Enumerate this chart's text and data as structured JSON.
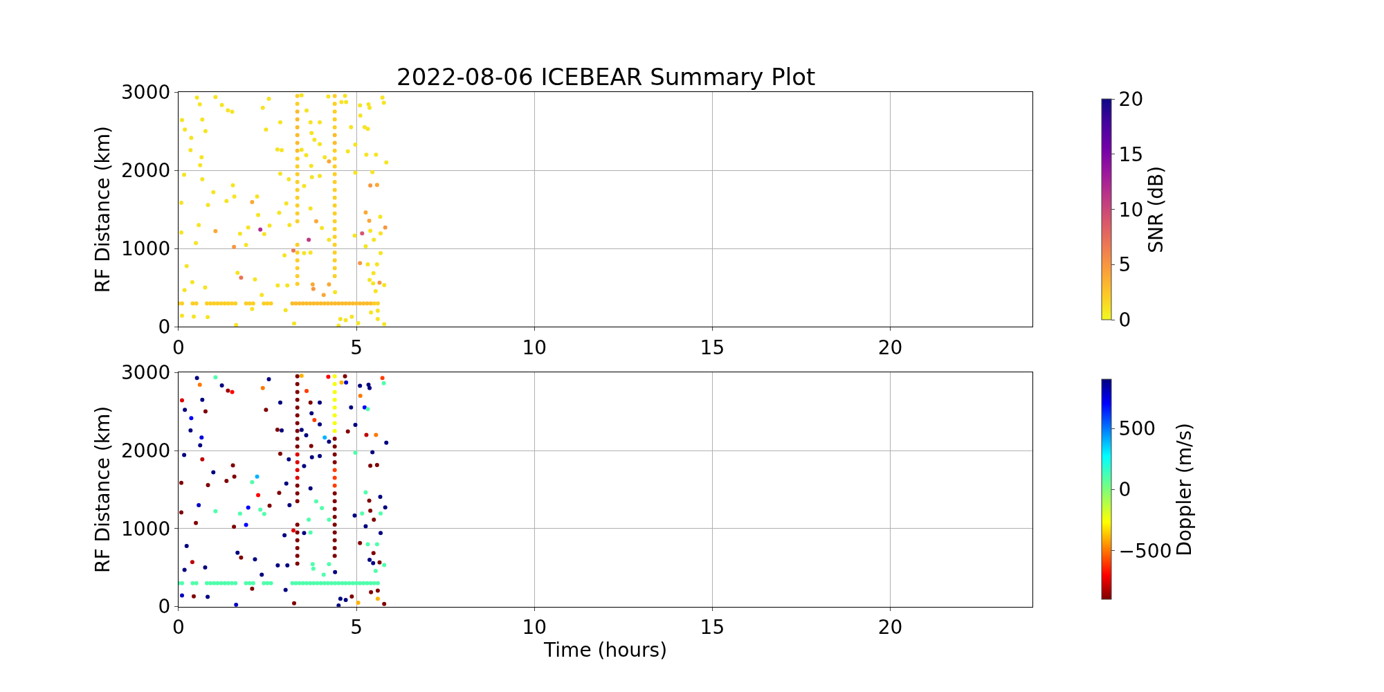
{
  "chart_data": [
    {
      "type": "scatter",
      "title": "2022-08-06 ICEBEAR Summary Plot",
      "ylabel": "RF Distance (km)",
      "clabel": "SNR (dB)",
      "xlim": [
        0,
        24
      ],
      "xticks": [
        0,
        5,
        10,
        15,
        20
      ],
      "ylim": [
        0,
        3000
      ],
      "yticks": [
        0,
        1000,
        2000,
        3000
      ],
      "clim": [
        0,
        20
      ],
      "cticks": [
        0,
        5,
        10,
        15,
        20
      ],
      "grid": true,
      "marker": "circle",
      "x": [
        0.52,
        1.04,
        1.22,
        1.39,
        1.51,
        0.6,
        0.1,
        0.67,
        0.18,
        0.36,
        0.76,
        0.34,
        0.65,
        0.61,
        0.16,
        0.67,
        0.98,
        0.08,
        0.83,
        1.35,
        1.57,
        1.53,
        2.07,
        2.21,
        2.24,
        0.57,
        1.04,
        1.73,
        1.96,
        2.41,
        2.56,
        0.08,
        0.49,
        1.56,
        1.9,
        0.23,
        0.39,
        0.75,
        0.17,
        1.66,
        1.76,
        2.15,
        2.34,
        0.1,
        0.43,
        0.82,
        1.62,
        2.07,
        2.79,
        2.86,
        2.78,
        2.9,
        2.54,
        2.37,
        2.46,
        2.86,
        3.1,
        3.03,
        2.83,
        3.12,
        2.98,
        3.06,
        3.01,
        3.25,
        3.6,
        3.71,
        3.82,
        3.74,
        3.46,
        3.59,
        3.73,
        3.97,
        3.97,
        4.11,
        4.23,
        4.21,
        3.46,
        3.75,
        3.97,
        3.53,
        3.71,
        3.87,
        4.03,
        4.23,
        3.71,
        3.53,
        3.77,
        3.79,
        4.23,
        4.4,
        4.08,
        4.5,
        4.55,
        4.7,
        4.87,
        4.58,
        4.68,
        4.71,
        4.85,
        4.76,
        4.97,
        5.1,
        5.34,
        5.37,
        5.11,
        5.23,
        5.32,
        5.28,
        5.55,
        5.84,
        5.73,
        5.77,
        4.97,
        5.45,
        5.39,
        5.58,
        5.26,
        5.36,
        5.67,
        5.81,
        5.39,
        5.68,
        5.16,
        4.95,
        5.49,
        5.26,
        5.68,
        5.1,
        5.32,
        5.58,
        5.48,
        5.37,
        5.47,
        5.65,
        5.78,
        5.54,
        5.41,
        5.6,
        5.78,
        5.6,
        5.05,
        2.3,
        3.66,
        3.23,
        3.34,
        3.34,
        3.34,
        3.34,
        3.34,
        3.34,
        3.34,
        3.34,
        3.34,
        3.34,
        3.34,
        3.34,
        3.34,
        3.34,
        3.34,
        3.34,
        3.34,
        3.34,
        3.34,
        3.34,
        3.34,
        3.34,
        3.34,
        4.39,
        4.39,
        4.39,
        4.39,
        4.39,
        4.39,
        4.39,
        4.39,
        4.39,
        4.39,
        4.39,
        4.39,
        4.39,
        4.39,
        4.39,
        4.39,
        4.39,
        4.39,
        4.39,
        4.39,
        4.39,
        4.39,
        4.39,
        4.39,
        0.0,
        0.1,
        0.4,
        0.5,
        0.8,
        0.9,
        1.0,
        1.1,
        1.2,
        1.3,
        1.4,
        1.5,
        1.6,
        1.9,
        2.0,
        2.1,
        2.4,
        2.5,
        2.6,
        3.2,
        3.3,
        3.4,
        3.5,
        3.6,
        3.7,
        3.8,
        3.9,
        4.0,
        4.1,
        4.2,
        4.3,
        4.4,
        4.5,
        4.6,
        4.7,
        4.8,
        4.9,
        5.0,
        5.1,
        5.2,
        5.3,
        5.4,
        5.5,
        5.6
      ],
      "values": [
        2929,
        2937,
        2834,
        2766,
        2749,
        2843,
        2643,
        2649,
        2520,
        2414,
        2500,
        2257,
        2166,
        2066,
        1943,
        1886,
        1720,
        1586,
        1557,
        1609,
        1666,
        1809,
        1594,
        1666,
        1429,
        1300,
        1223,
        1191,
        1269,
        1186,
        1294,
        1206,
        1071,
        1023,
        1046,
        777,
        571,
        503,
        471,
        691,
        629,
        606,
        409,
        143,
        131,
        126,
        23,
        229,
        529,
        2614,
        2266,
        2257,
        2914,
        2800,
        2520,
        1957,
        1886,
        1577,
        1457,
        1300,
        914,
        529,
        214,
        43,
        2763,
        2614,
        2391,
        2477,
        2263,
        2194,
        2057,
        2614,
        2334,
        2166,
        2114,
        2943,
        2957,
        1914,
        1929,
        1800,
        1514,
        1349,
        1263,
        1114,
        949,
        943,
        543,
        486,
        543,
        443,
        409,
        14,
        100,
        86,
        129,
        2871,
        2951,
        2871,
        2551,
        2243,
        2329,
        2829,
        2843,
        2800,
        2700,
        2551,
        2529,
        2200,
        2200,
        2100,
        2929,
        2863,
        1971,
        1977,
        1806,
        1814,
        1463,
        1357,
        1406,
        1271,
        1229,
        1194,
        1194,
        1166,
        1114,
        1029,
        943,
        814,
        800,
        800,
        686,
        600,
        557,
        566,
        534,
        457,
        186,
        206,
        34,
        100,
        49,
        1243,
        1114,
        977,
        2950,
        2850,
        2750,
        2650,
        2550,
        2450,
        2350,
        2250,
        2150,
        2050,
        1950,
        1850,
        1750,
        1650,
        1550,
        1450,
        1350,
        1050,
        950,
        850,
        750,
        650,
        550,
        2950,
        2850,
        2750,
        2650,
        2550,
        2450,
        2350,
        2250,
        2150,
        2050,
        1950,
        1850,
        1750,
        1650,
        1550,
        1450,
        1350,
        1250,
        1150,
        1050,
        950,
        850,
        750,
        650,
        300,
        300,
        300,
        300,
        300,
        300,
        300,
        300,
        300,
        300,
        300,
        300,
        300,
        300,
        300,
        300,
        300,
        300,
        300,
        300,
        300,
        300,
        300,
        300,
        300,
        300,
        300,
        300,
        300,
        300,
        300,
        300,
        300,
        300,
        300,
        300,
        300,
        300,
        300,
        300,
        300,
        300,
        300,
        300
      ],
      "cvalues": [
        1,
        1,
        1,
        1,
        1,
        1,
        1,
        1,
        1,
        1,
        1,
        1,
        1,
        1,
        1,
        1,
        1,
        1,
        1,
        1,
        1,
        1,
        4,
        1,
        1,
        1,
        4,
        1,
        1,
        1,
        1,
        1,
        1,
        5,
        1,
        1,
        1,
        1,
        1,
        1,
        7,
        1,
        1,
        1,
        1,
        1,
        1,
        1,
        1,
        1,
        1,
        1,
        1,
        1,
        1,
        1,
        1,
        1,
        1,
        1,
        1,
        1,
        1,
        1,
        1,
        1,
        1,
        1,
        1,
        1,
        1,
        1,
        1,
        1,
        4,
        1,
        1,
        1,
        1,
        1,
        1,
        4,
        1,
        1,
        1,
        1,
        4,
        5,
        4,
        1,
        4,
        1,
        1,
        1,
        1,
        1,
        1,
        1,
        1,
        1,
        1,
        1,
        1,
        1,
        1,
        1,
        1,
        1,
        1,
        1,
        1,
        1,
        1,
        1,
        5,
        4,
        4,
        4,
        1,
        5,
        1,
        1,
        9,
        1,
        1,
        1,
        1,
        5,
        1,
        1,
        1,
        1,
        1,
        5,
        1,
        1,
        1,
        1,
        1,
        1,
        1,
        12,
        11,
        7,
        2,
        2,
        3,
        3,
        3,
        3,
        3,
        3,
        2,
        2,
        2,
        2,
        2,
        2,
        2,
        2,
        2,
        2,
        2,
        2,
        2,
        2,
        2,
        2,
        2,
        2,
        2,
        2,
        3,
        3,
        2,
        2,
        2,
        2,
        2,
        2,
        2,
        2,
        2,
        2,
        2,
        2,
        2,
        2,
        2,
        2,
        2,
        2,
        2,
        2,
        2,
        2,
        2,
        2,
        2,
        2,
        2,
        2,
        2,
        2,
        2,
        2,
        2,
        2,
        2,
        2,
        3,
        3,
        3,
        3,
        3,
        3,
        3,
        3,
        3,
        3,
        3,
        3,
        3,
        3,
        3,
        3,
        3,
        3,
        3,
        3,
        3,
        3,
        3,
        2,
        2
      ]
    },
    {
      "type": "scatter",
      "xlabel": "Time (hours)",
      "ylabel": "RF Distance (km)",
      "clabel": "Doppler (m/s)",
      "xlim": [
        0,
        24
      ],
      "xticks": [
        0,
        5,
        10,
        15,
        20
      ],
      "ylim": [
        0,
        3000
      ],
      "yticks": [
        0,
        1000,
        2000,
        3000
      ],
      "clim": [
        -900,
        900
      ],
      "cticks": [
        {
          "value": -500,
          "label": "−500"
        },
        0,
        500
      ],
      "grid": true,
      "marker": "circle",
      "x": [
        0.52,
        1.04,
        1.22,
        1.39,
        1.51,
        0.6,
        0.1,
        0.67,
        0.18,
        0.36,
        0.76,
        0.34,
        0.65,
        0.61,
        0.16,
        0.67,
        0.98,
        0.08,
        0.83,
        1.35,
        1.57,
        1.53,
        2.07,
        2.21,
        2.24,
        0.57,
        1.04,
        1.73,
        1.96,
        2.41,
        2.56,
        0.08,
        0.49,
        1.56,
        1.9,
        0.23,
        0.39,
        0.75,
        0.17,
        1.66,
        1.76,
        2.15,
        2.34,
        0.1,
        0.43,
        0.82,
        1.62,
        2.07,
        2.79,
        2.86,
        2.78,
        2.9,
        2.54,
        2.37,
        2.46,
        2.86,
        3.1,
        3.03,
        2.83,
        3.12,
        2.98,
        3.06,
        3.01,
        3.25,
        3.6,
        3.71,
        3.82,
        3.74,
        3.46,
        3.59,
        3.73,
        3.97,
        3.97,
        4.11,
        4.23,
        4.21,
        3.46,
        3.75,
        3.97,
        3.53,
        3.71,
        3.87,
        4.03,
        4.23,
        3.71,
        3.53,
        3.77,
        3.79,
        4.23,
        4.4,
        4.08,
        4.5,
        4.55,
        4.7,
        4.87,
        4.58,
        4.68,
        4.71,
        4.85,
        4.76,
        4.97,
        5.1,
        5.34,
        5.37,
        5.11,
        5.23,
        5.32,
        5.28,
        5.55,
        5.84,
        5.73,
        5.77,
        4.97,
        5.45,
        5.39,
        5.58,
        5.26,
        5.36,
        5.67,
        5.81,
        5.39,
        5.68,
        5.16,
        4.95,
        5.49,
        5.26,
        5.68,
        5.1,
        5.32,
        5.58,
        5.48,
        5.37,
        5.47,
        5.65,
        5.78,
        5.54,
        5.41,
        5.6,
        5.78,
        5.6,
        5.05,
        2.3,
        3.66,
        3.23,
        3.34,
        3.34,
        3.34,
        3.34,
        3.34,
        3.34,
        3.34,
        3.34,
        3.34,
        3.34,
        3.34,
        3.34,
        3.34,
        3.34,
        3.34,
        3.34,
        3.34,
        3.34,
        3.34,
        3.34,
        3.34,
        3.34,
        3.34,
        4.39,
        4.39,
        4.39,
        4.39,
        4.39,
        4.39,
        4.39,
        4.39,
        4.39,
        4.39,
        4.39,
        4.39,
        4.39,
        4.39,
        4.39,
        4.39,
        4.39,
        4.39,
        4.39,
        4.39,
        4.39,
        4.39,
        4.39,
        4.39,
        0.0,
        0.1,
        0.4,
        0.5,
        0.8,
        0.9,
        1.0,
        1.1,
        1.2,
        1.3,
        1.4,
        1.5,
        1.6,
        1.9,
        2.0,
        2.1,
        2.4,
        2.5,
        2.6,
        3.2,
        3.3,
        3.4,
        3.5,
        3.6,
        3.7,
        3.8,
        3.9,
        4.0,
        4.1,
        4.2,
        4.3,
        4.4,
        4.5,
        4.6,
        4.7,
        4.8,
        4.9,
        5.0,
        5.1,
        5.2,
        5.3,
        5.4,
        5.5,
        5.6
      ],
      "values": [
        2929,
        2937,
        2834,
        2766,
        2749,
        2843,
        2643,
        2649,
        2520,
        2414,
        2500,
        2257,
        2166,
        2066,
        1943,
        1886,
        1720,
        1586,
        1557,
        1609,
        1666,
        1809,
        1594,
        1666,
        1429,
        1300,
        1223,
        1191,
        1269,
        1186,
        1294,
        1206,
        1071,
        1023,
        1046,
        777,
        571,
        503,
        471,
        691,
        629,
        606,
        409,
        143,
        131,
        126,
        23,
        229,
        529,
        2614,
        2266,
        2257,
        2914,
        2800,
        2520,
        1957,
        1886,
        1577,
        1457,
        1300,
        914,
        529,
        214,
        43,
        2763,
        2614,
        2391,
        2477,
        2263,
        2194,
        2057,
        2614,
        2334,
        2166,
        2114,
        2943,
        2957,
        1914,
        1929,
        1800,
        1514,
        1349,
        1263,
        1114,
        949,
        943,
        543,
        486,
        543,
        443,
        409,
        14,
        100,
        86,
        129,
        2871,
        2951,
        2871,
        2551,
        2243,
        2329,
        2829,
        2843,
        2800,
        2700,
        2551,
        2529,
        2200,
        2200,
        2100,
        2929,
        2863,
        1971,
        1977,
        1806,
        1814,
        1463,
        1357,
        1406,
        1271,
        1229,
        1194,
        1194,
        1166,
        1114,
        1029,
        943,
        814,
        800,
        800,
        686,
        600,
        557,
        566,
        534,
        457,
        186,
        206,
        34,
        100,
        49,
        1243,
        1114,
        977,
        2950,
        2850,
        2750,
        2650,
        2550,
        2450,
        2350,
        2250,
        2150,
        2050,
        1950,
        1850,
        1750,
        1650,
        1550,
        1450,
        1350,
        1050,
        950,
        850,
        750,
        650,
        550,
        2950,
        2850,
        2750,
        2650,
        2550,
        2450,
        2350,
        2250,
        2150,
        2050,
        1950,
        1850,
        1750,
        1650,
        1550,
        1450,
        1350,
        1250,
        1150,
        1050,
        950,
        850,
        750,
        650,
        300,
        300,
        300,
        300,
        300,
        300,
        300,
        300,
        300,
        300,
        300,
        300,
        300,
        300,
        300,
        300,
        300,
        300,
        300,
        300,
        300,
        300,
        300,
        300,
        300,
        300,
        300,
        300,
        300,
        300,
        300,
        300,
        300,
        300,
        300,
        300,
        300,
        300,
        300,
        300,
        300,
        300,
        300,
        300
      ],
      "cvalues": [
        900,
        100,
        900,
        -850,
        -700,
        -500,
        -750,
        900,
        900,
        700,
        -900,
        900,
        750,
        900,
        900,
        -800,
        900,
        -900,
        -900,
        -900,
        -900,
        -900,
        100,
        400,
        -700,
        800,
        100,
        100,
        700,
        100,
        -900,
        -900,
        -900,
        -900,
        700,
        900,
        -800,
        900,
        900,
        900,
        -900,
        900,
        900,
        800,
        -900,
        900,
        800,
        -900,
        900,
        900,
        -900,
        900,
        900,
        -500,
        -900,
        -900,
        900,
        900,
        -900,
        900,
        900,
        900,
        900,
        -900,
        -600,
        -900,
        -600,
        900,
        900,
        900,
        -900,
        900,
        900,
        400,
        900,
        -700,
        -400,
        900,
        900,
        900,
        900,
        100,
        100,
        100,
        100,
        900,
        100,
        100,
        100,
        900,
        100,
        900,
        900,
        900,
        -900,
        -400,
        -900,
        800,
        900,
        -900,
        900,
        900,
        900,
        900,
        -500,
        700,
        100,
        -800,
        -500,
        900,
        -600,
        100,
        100,
        900,
        -900,
        -900,
        100,
        -900,
        900,
        900,
        -900,
        100,
        100,
        900,
        -900,
        900,
        900,
        -900,
        100,
        100,
        -900,
        900,
        900,
        -900,
        100,
        100,
        -900,
        -900,
        -900,
        -400,
        -400,
        100,
        100,
        -750,
        -900,
        -900,
        -900,
        -900,
        -900,
        -900,
        -900,
        -900,
        -900,
        -900,
        -750,
        -750,
        -750,
        -750,
        -900,
        -900,
        -900,
        -900,
        -900,
        -900,
        -900,
        -900,
        -900,
        -250,
        -250,
        -250,
        -250,
        -250,
        -250,
        -250,
        -250,
        -900,
        -900,
        -900,
        -900,
        -600,
        -600,
        -600,
        -900,
        -900,
        -900,
        -900,
        -900,
        -900,
        -900,
        -900,
        -900,
        100,
        100,
        100,
        100,
        100,
        100,
        100,
        100,
        100,
        100,
        100,
        100,
        100,
        100,
        100,
        100,
        100,
        100,
        100,
        100,
        100,
        100,
        100,
        100,
        100,
        100,
        100,
        100,
        100,
        100,
        100,
        100,
        100,
        100,
        100,
        100,
        100,
        100,
        100,
        100,
        100,
        100,
        100,
        100
      ]
    }
  ]
}
